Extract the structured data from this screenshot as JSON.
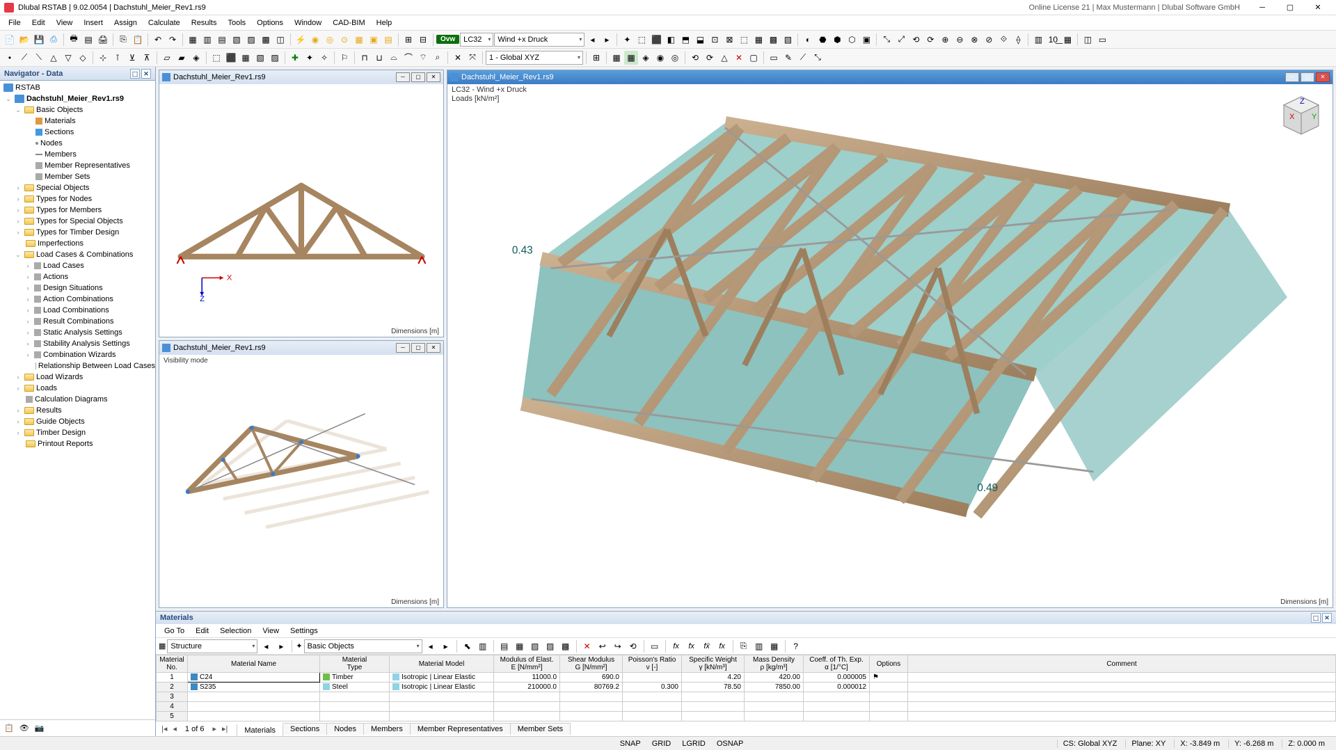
{
  "titlebar": {
    "app": "Dlubal RSTAB",
    "version": "9.02.0054",
    "file": "Dachstuhl_Meier_Rev1.rs9",
    "license": "Online License 21 | Max Mustermann | Dlubal Software GmbH"
  },
  "menu": [
    "File",
    "Edit",
    "View",
    "Insert",
    "Assign",
    "Calculate",
    "Results",
    "Tools",
    "Options",
    "Window",
    "CAD-BIM",
    "Help"
  ],
  "toolbar1": {
    "badge": "Ovw",
    "loadcase": "LC32",
    "loadname": "Wind +x Druck"
  },
  "toolbar2": {
    "coordsys": "1 - Global XYZ"
  },
  "navigator": {
    "title": "Navigator - Data",
    "root": "RSTAB",
    "project": "Dachstuhl_Meier_Rev1.rs9",
    "basicObjects": {
      "label": "Basic Objects",
      "children": [
        "Materials",
        "Sections",
        "Nodes",
        "Members",
        "Member Representatives",
        "Member Sets"
      ]
    },
    "groups1": [
      "Special Objects",
      "Types for Nodes",
      "Types for Members",
      "Types for Special Objects",
      "Types for Timber Design",
      "Imperfections"
    ],
    "loadCases": {
      "label": "Load Cases & Combinations",
      "children": [
        "Load Cases",
        "Actions",
        "Design Situations",
        "Action Combinations",
        "Load Combinations",
        "Result Combinations",
        "Static Analysis Settings",
        "Stability Analysis Settings",
        "Combination Wizards",
        "Relationship Between Load Cases"
      ]
    },
    "groups2": [
      "Load Wizards",
      "Loads",
      "Calculation Diagrams",
      "Results",
      "Guide Objects",
      "Timber Design",
      "Printout Reports"
    ]
  },
  "views": {
    "v1": {
      "title": "Dachstuhl_Meier_Rev1.rs9",
      "dim": "Dimensions [m]"
    },
    "v2": {
      "title": "Dachstuhl_Meier_Rev1.rs9",
      "info": "Visibility mode",
      "dim": "Dimensions [m]"
    },
    "v3": {
      "title": "Dachstuhl_Meier_Rev1.rs9",
      "info1": "LC32 - Wind +x Druck",
      "info2": "Loads [kN/m²]",
      "dim": "Dimensions [m]",
      "load1": "0.43",
      "load2": "0.49"
    }
  },
  "materials": {
    "title": "Materials",
    "menu": [
      "Go To",
      "Edit",
      "Selection",
      "View",
      "Settings"
    ],
    "structLabel": "Structure",
    "basicLabel": "Basic Objects",
    "columns": [
      "Material\nNo.",
      "Material Name",
      "Material\nType",
      "Material Model",
      "Modulus of Elast.\nE [N/mm²]",
      "Shear Modulus\nG [N/mm²]",
      "Poisson's Ratio\nν [-]",
      "Specific Weight\nγ [kN/m³]",
      "Mass Density\nρ [kg/m³]",
      "Coeff. of Th. Exp.\nα [1/°C]",
      "Options",
      "Comment"
    ],
    "rows": [
      {
        "no": "1",
        "name": "C24",
        "swatch": "#3b8ac4",
        "type": "Timber",
        "tswatch": "#6fbf4b",
        "model": "Isotropic | Linear Elastic",
        "mswatch": "#8fd3e8",
        "E": "11000.0",
        "G": "690.0",
        "v": "",
        "gamma": "4.20",
        "rho": "420.00",
        "alpha": "0.000005",
        "opt": "⚑"
      },
      {
        "no": "2",
        "name": "S235",
        "swatch": "#3b8ac4",
        "type": "Steel",
        "tswatch": "#8fd3e8",
        "model": "Isotropic | Linear Elastic",
        "mswatch": "#8fd3e8",
        "E": "210000.0",
        "G": "80769.2",
        "v": "0.300",
        "gamma": "78.50",
        "rho": "7850.00",
        "alpha": "0.000012",
        "opt": ""
      }
    ],
    "emptyRows": [
      "3",
      "4",
      "5"
    ],
    "pager": "1 of 6",
    "tabs": [
      "Materials",
      "Sections",
      "Nodes",
      "Members",
      "Member Representatives",
      "Member Sets"
    ],
    "activeTab": 0
  },
  "status": {
    "snaps": [
      "SNAP",
      "GRID",
      "LGRID",
      "OSNAP"
    ],
    "cs": "CS: Global XYZ",
    "plane": "Plane: XY",
    "x": "X: -3.849 m",
    "y": "Y: -6.268 m",
    "z": "Z: 0.000 m"
  },
  "colors": {
    "wood": "#b8956f",
    "woodDark": "#8a6f50",
    "teal": "#4da8a0",
    "tealDark": "#2f7a74",
    "steel": "#999999"
  }
}
